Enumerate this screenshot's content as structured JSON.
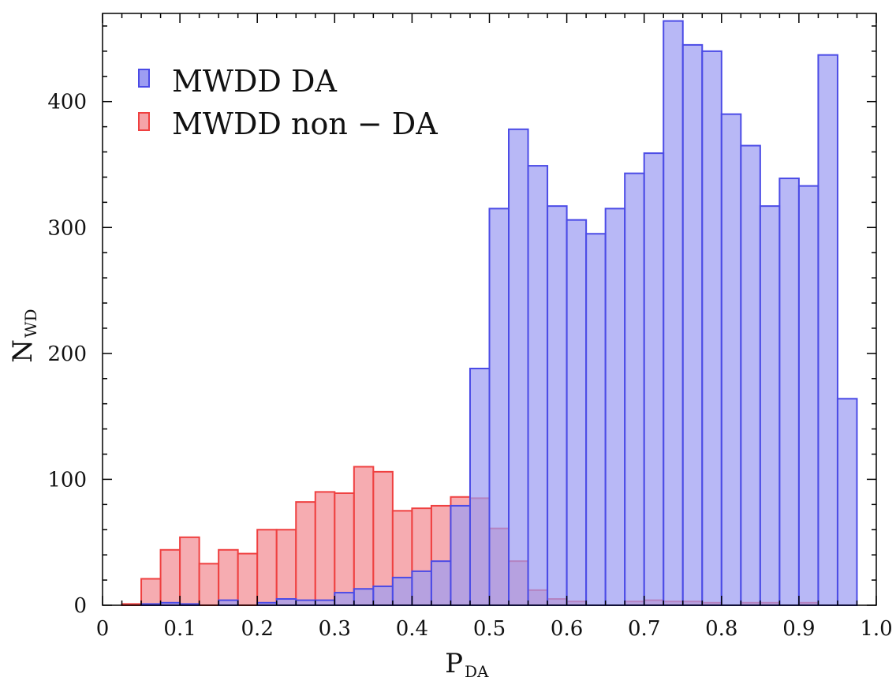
{
  "chart_data": {
    "type": "bar",
    "subtype": "overlapping-histogram",
    "title": "",
    "xlabel": "P",
    "xlabel_subscript": "DA",
    "ylabel": "N",
    "ylabel_subscript": "WD",
    "xlim": [
      0,
      1.0
    ],
    "ylim": [
      0,
      470
    ],
    "bin_width": 0.025,
    "bin_starts": [
      0.025,
      0.05,
      0.075,
      0.1,
      0.125,
      0.15,
      0.175,
      0.2,
      0.225,
      0.25,
      0.275,
      0.3,
      0.325,
      0.35,
      0.375,
      0.4,
      0.425,
      0.45,
      0.475,
      0.5,
      0.525,
      0.55,
      0.575,
      0.6,
      0.625,
      0.65,
      0.675,
      0.7,
      0.725,
      0.75,
      0.775,
      0.8,
      0.825,
      0.85,
      0.875,
      0.9,
      0.925,
      0.95
    ],
    "x_ticks": [
      "0",
      "0.1",
      "0.2",
      "0.3",
      "0.4",
      "0.5",
      "0.6",
      "0.7",
      "0.8",
      "0.9",
      "1.0"
    ],
    "y_ticks": [
      "0",
      "100",
      "200",
      "300",
      "400"
    ],
    "series": [
      {
        "name": "MWDD non − DA",
        "color": "#ef4040",
        "fill": "#f5a3a8",
        "values": [
          1,
          21,
          44,
          54,
          33,
          44,
          41,
          60,
          60,
          82,
          90,
          89,
          110,
          106,
          75,
          77,
          79,
          86,
          85,
          61,
          35,
          12,
          5,
          3,
          0,
          0,
          3,
          4,
          3,
          3,
          2,
          0,
          2,
          2,
          0,
          2,
          0,
          0
        ]
      },
      {
        "name": "MWDD DA",
        "color": "#4b4be6",
        "fill": "#9d9df2",
        "values": [
          0,
          1,
          2,
          1,
          0,
          4,
          0,
          2,
          5,
          4,
          4,
          10,
          13,
          15,
          22,
          27,
          35,
          79,
          188,
          315,
          378,
          349,
          317,
          306,
          295,
          315,
          343,
          359,
          464,
          445,
          440,
          390,
          365,
          317,
          339,
          333,
          437,
          164
        ]
      }
    ],
    "legend": {
      "position": "top-left",
      "entries": [
        "MWDD DA",
        "MWDD non − DA"
      ]
    }
  }
}
